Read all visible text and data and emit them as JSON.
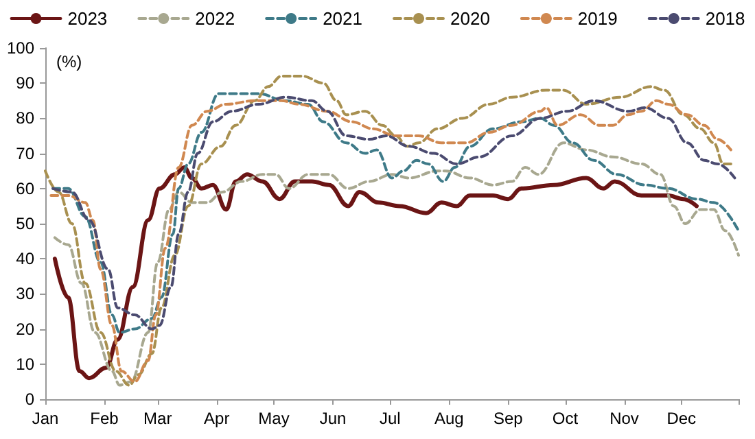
{
  "chart_data": {
    "type": "line",
    "ylabel": "(%)",
    "xlim": [
      "--01-01",
      "--12-31"
    ],
    "xticks": [
      {
        "value": "--01-01",
        "label": "Jan"
      },
      {
        "value": "--02-01",
        "label": "Feb"
      },
      {
        "value": "--03-01",
        "label": "Mar"
      },
      {
        "value": "--04-01",
        "label": "Apr"
      },
      {
        "value": "--05-01",
        "label": "May"
      },
      {
        "value": "--06-01",
        "label": "Jun"
      },
      {
        "value": "--07-01",
        "label": "Jul"
      },
      {
        "value": "--08-01",
        "label": "Aug"
      },
      {
        "value": "--09-01",
        "label": "Sep"
      },
      {
        "value": "--10-01",
        "label": "Oct"
      },
      {
        "value": "--11-01",
        "label": "Nov"
      },
      {
        "value": "--12-01",
        "label": "Dec"
      },
      {
        "value": "--12-31",
        "label": null
      }
    ],
    "ylim": [
      0,
      100
    ],
    "yticks": [
      0,
      10,
      20,
      30,
      40,
      50,
      60,
      70,
      80,
      90,
      100
    ],
    "grid": false,
    "legend": "top",
    "marker": "none",
    "series": [
      {
        "name": "2023",
        "color": "#6b1515",
        "line_style": "solid",
        "x": [
          "--01-06",
          "--01-13",
          "--01-19",
          "--01-24",
          "--02-02",
          "--02-08",
          "--02-16",
          "--02-24",
          "--03-02",
          "--03-10",
          "--03-15",
          "--03-19",
          "--03-24",
          "--03-30",
          "--04-06",
          "--04-11",
          "--04-17",
          "--04-25",
          "--05-04",
          "--05-12",
          "--05-21",
          "--05-30",
          "--06-09",
          "--06-15",
          "--06-25",
          "--07-06",
          "--07-20",
          "--07-28",
          "--08-05",
          "--08-12",
          "--08-24",
          "--09-01",
          "--09-08",
          "--09-25",
          "--10-12",
          "--10-21",
          "--10-27",
          "--11-10",
          "--11-24",
          "--12-02",
          "--12-09"
        ],
        "values": [
          40,
          29,
          8,
          6,
          9,
          17,
          32,
          51,
          60,
          64,
          66,
          63,
          60,
          61,
          54,
          62,
          64,
          62,
          57,
          62,
          62,
          61,
          55,
          59,
          56,
          55,
          53,
          56,
          55,
          58,
          58,
          57,
          60,
          61,
          63,
          60,
          62,
          58,
          58,
          57,
          55
        ]
      },
      {
        "name": "2022",
        "color": "#a8a890",
        "line_style": "dashed",
        "x": [
          "--01-06",
          "--01-13",
          "--01-20",
          "--01-27",
          "--02-05",
          "--02-09",
          "--02-15",
          "--02-24",
          "--03-01",
          "--03-07",
          "--03-12",
          "--03-19",
          "--03-27",
          "--04-04",
          "--04-14",
          "--04-25",
          "--05-02",
          "--05-09",
          "--05-19",
          "--05-30",
          "--06-09",
          "--06-20",
          "--07-02",
          "--07-11",
          "--07-26",
          "--07-30",
          "--08-12",
          "--08-24",
          "--09-03",
          "--09-10",
          "--09-17",
          "--09-30",
          "--10-12",
          "--10-26",
          "--11-10",
          "--11-20",
          "--11-27",
          "--12-03",
          "--12-11",
          "--12-18",
          "--12-24",
          "--12-31"
        ],
        "values": [
          46,
          44,
          33,
          19,
          8,
          4,
          5,
          19,
          39,
          54,
          59,
          56,
          56,
          59,
          62,
          64,
          64,
          60,
          64,
          64,
          60,
          62,
          64,
          63,
          65,
          65,
          63,
          61,
          62,
          66,
          64,
          73,
          71,
          69,
          67,
          64,
          55,
          50,
          54,
          54,
          48,
          41
        ]
      },
      {
        "name": "2021",
        "color": "#3e7a88",
        "line_style": "dashed",
        "x": [
          "--01-05",
          "--01-13",
          "--01-22",
          "--01-30",
          "--02-05",
          "--02-09",
          "--02-17",
          "--02-26",
          "--03-03",
          "--03-09",
          "--03-12",
          "--03-17",
          "--03-24",
          "--04-02",
          "--04-11",
          "--04-23",
          "--05-07",
          "--05-19",
          "--05-27",
          "--06-08",
          "--06-18",
          "--06-24",
          "--07-02",
          "--07-08",
          "--07-15",
          "--07-21",
          "--07-29",
          "--08-04",
          "--08-12",
          "--08-24",
          "--09-08",
          "--09-18",
          "--09-25",
          "--10-05",
          "--10-16",
          "--10-28",
          "--11-12",
          "--11-24",
          "--12-09",
          "--12-18",
          "--12-31"
        ],
        "values": [
          60,
          60,
          52,
          39,
          24,
          19,
          20,
          23,
          29,
          47,
          60,
          67,
          76,
          87,
          87,
          87,
          85,
          84,
          79,
          73,
          70,
          71,
          63,
          65,
          68,
          67,
          62,
          66,
          72,
          77,
          79,
          80,
          78,
          73,
          68,
          64,
          61,
          60,
          57,
          56,
          48
        ]
      },
      {
        "name": "2020",
        "color": "#a89050",
        "line_style": "dashed",
        "x": [
          "--01-01",
          "--01-08",
          "--01-15",
          "--01-22",
          "--01-30",
          "--02-07",
          "--02-14",
          "--02-19",
          "--02-26",
          "--03-03",
          "--03-10",
          "--03-17",
          "--03-24",
          "--04-03",
          "--04-11",
          "--04-21",
          "--04-28",
          "--05-05",
          "--05-16",
          "--05-27",
          "--06-03",
          "--06-08",
          "--06-18",
          "--06-27",
          "--07-04",
          "--07-10",
          "--07-16",
          "--07-26",
          "--08-08",
          "--08-22",
          "--09-03",
          "--09-21",
          "--09-30",
          "--10-12",
          "--10-30",
          "--11-15",
          "--11-22",
          "--12-02",
          "--12-11",
          "--12-18",
          "--12-23",
          "--12-27"
        ],
        "values": [
          65,
          59,
          50,
          33,
          19,
          8,
          4,
          7,
          13,
          26,
          41,
          55,
          67,
          72,
          78,
          85,
          89,
          92,
          92,
          90,
          85,
          81,
          82,
          78,
          75,
          72,
          73,
          77,
          80,
          84,
          86,
          88,
          88,
          84,
          86,
          89,
          88,
          81,
          77,
          73,
          67,
          67
        ]
      },
      {
        "name": "2019",
        "color": "#d08850",
        "line_style": "dashed",
        "x": [
          "--01-04",
          "--01-13",
          "--01-22",
          "--01-26",
          "--01-30",
          "--02-05",
          "--02-10",
          "--02-17",
          "--02-24",
          "--02-28",
          "--03-05",
          "--03-12",
          "--03-19",
          "--03-27",
          "--04-06",
          "--04-21",
          "--05-05",
          "--05-14",
          "--05-29",
          "--06-11",
          "--06-22",
          "--07-04",
          "--07-16",
          "--07-28",
          "--08-10",
          "--08-22",
          "--09-03",
          "--09-18",
          "--09-21",
          "--09-27",
          "--10-09",
          "--10-19",
          "--10-26",
          "--11-03",
          "--11-10",
          "--11-18",
          "--11-24",
          "--12-04",
          "--12-13",
          "--12-20",
          "--12-27"
        ],
        "values": [
          58,
          58,
          56,
          51,
          37,
          21,
          8,
          5,
          11,
          24,
          43,
          66,
          78,
          82,
          84,
          85,
          85,
          84,
          82,
          79,
          77,
          75,
          75,
          73,
          73,
          76,
          78,
          82,
          83,
          78,
          81,
          78,
          78,
          81,
          82,
          85,
          84,
          81,
          78,
          74,
          71
        ]
      },
      {
        "name": "2018",
        "color": "#4b4b70",
        "line_style": "dashed",
        "x": [
          "--01-05",
          "--01-15",
          "--01-24",
          "--02-03",
          "--02-08",
          "--02-17",
          "--02-26",
          "--03-02",
          "--03-08",
          "--03-12",
          "--03-17",
          "--03-22",
          "--03-30",
          "--04-09",
          "--04-23",
          "--05-07",
          "--05-21",
          "--05-29",
          "--06-08",
          "--06-20",
          "--06-29",
          "--07-11",
          "--07-24",
          "--08-05",
          "--08-17",
          "--09-03",
          "--09-18",
          "--10-02",
          "--10-16",
          "--11-03",
          "--11-12",
          "--11-24",
          "--12-04",
          "--12-13",
          "--12-20",
          "--12-29"
        ],
        "values": [
          60,
          59,
          51,
          37,
          26,
          24,
          20,
          21,
          32,
          47,
          59,
          70,
          79,
          82,
          84,
          86,
          85,
          82,
          75,
          74,
          75,
          72,
          70,
          67,
          69,
          75,
          80,
          82,
          85,
          82,
          83,
          80,
          73,
          68,
          67,
          63
        ]
      }
    ]
  }
}
